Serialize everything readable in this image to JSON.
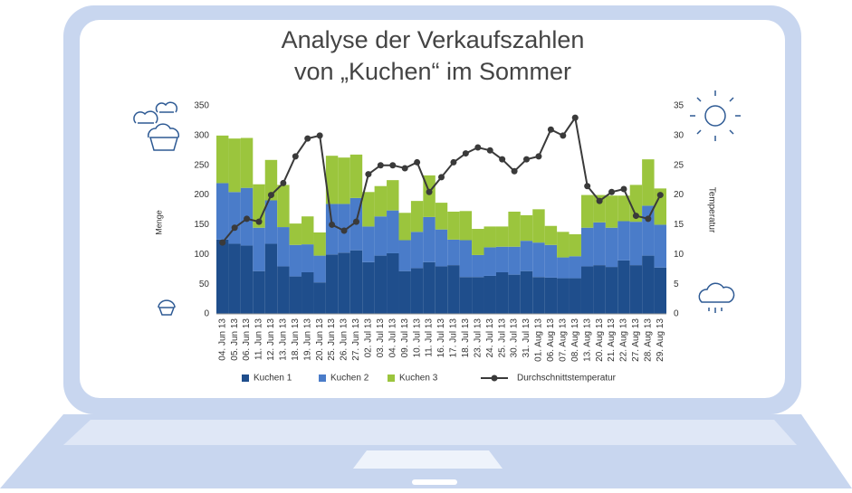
{
  "chart_data": {
    "type": "bar",
    "title": [
      "Analyse der Verkaufszahlen",
      "von „Kuchen“ im Sommer"
    ],
    "y_label": "Menge",
    "y2_label": "Temperatur",
    "stacked": true,
    "categories": [
      "04. Jun 13",
      "05. Jun 13",
      "06. Jun 13",
      "11. Jun 13",
      "12. Jun 13",
      "13. Jun 13",
      "18. Jun 13",
      "19. Jun 13",
      "20. Jun 13",
      "25. Jun 13",
      "26. Jun 13",
      "27. Jun 13",
      "02. Jul 13",
      "03. Jul 13",
      "04. Jul 13",
      "09. Jul 13",
      "10. Jul 13",
      "11. Jul 13",
      "16. Jul 13",
      "17. Jul 13",
      "18. Jul 13",
      "23. Jul 13",
      "24. Jul 13",
      "25. Jul 13",
      "30. Jul 13",
      "31. Jul 13",
      "01. Aug 13",
      "06. Aug 13",
      "07. Aug 13",
      "08. Aug 13",
      "13. Aug 13",
      "20. Aug 13",
      "21. Aug 13",
      "22. Aug 13",
      "27. Aug 13",
      "28. Aug 13",
      "29. Aug 13"
    ],
    "series": [
      {
        "name": "Kuchen 1",
        "color": "#1f4e8c",
        "values": [
          125,
          118,
          115,
          72,
          118,
          80,
          63,
          70,
          53,
          100,
          103,
          107,
          87,
          98,
          102,
          72,
          77,
          87,
          80,
          82,
          62,
          62,
          64,
          70,
          66,
          72,
          62,
          61,
          60,
          60,
          80,
          82,
          79,
          90,
          82,
          98,
          78
        ]
      },
      {
        "name": "Kuchen 2",
        "color": "#4a7cc9",
        "values": [
          95,
          87,
          97,
          73,
          73,
          66,
          53,
          47,
          45,
          85,
          82,
          88,
          60,
          66,
          72,
          52,
          61,
          76,
          62,
          43,
          62,
          37,
          48,
          43,
          47,
          51,
          58,
          55,
          35,
          37,
          65,
          72,
          66,
          66,
          73,
          84,
          72
        ]
      },
      {
        "name": "Kuchen 3",
        "color": "#9bc53d",
        "values": [
          80,
          90,
          84,
          73,
          68,
          71,
          36,
          47,
          39,
          81,
          78,
          73,
          58,
          51,
          51,
          46,
          52,
          70,
          45,
          47,
          49,
          44,
          35,
          34,
          59,
          43,
          56,
          32,
          43,
          37,
          55,
          46,
          54,
          43,
          62,
          78,
          61
        ]
      },
      {
        "name": "Durchschnittstemperatur",
        "type": "line",
        "axis": "y2",
        "color": "#3a3a3a",
        "values": [
          12,
          14.5,
          16,
          15.5,
          20,
          22,
          26.5,
          29.5,
          30,
          15,
          14,
          15.5,
          23.5,
          25,
          25,
          24.5,
          25.5,
          20.5,
          23,
          25.5,
          27,
          28,
          27.5,
          26,
          24,
          26,
          26.5,
          31,
          30,
          33,
          21.5,
          19,
          20.5,
          21,
          16.5,
          16,
          20
        ]
      }
    ],
    "ylim": [
      0,
      350
    ],
    "yticks": [
      0,
      50,
      100,
      150,
      200,
      250,
      300,
      350
    ],
    "y2lim": [
      0,
      35
    ],
    "y2ticks": [
      0,
      5,
      10,
      15,
      20,
      25,
      30,
      35
    ],
    "grid": false,
    "legend": "bottom"
  }
}
